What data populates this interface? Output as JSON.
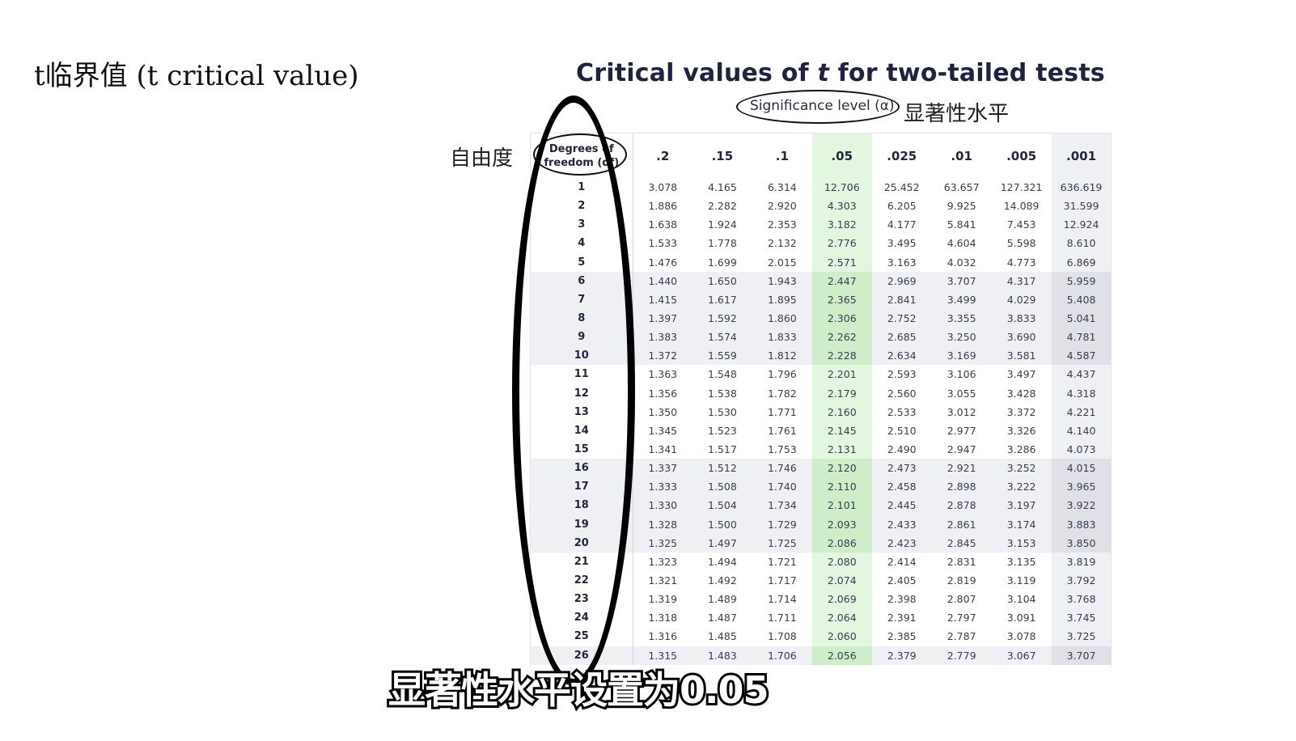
{
  "slide": {
    "title": "t临界值 (t critical value)"
  },
  "table": {
    "heading_before": "Critical values of ",
    "heading_t": "t",
    "heading_after": " for two-tailed tests",
    "significance_label": "Significance level (α)",
    "significance_label_cn": "显著性水平",
    "df_label_cn": "自由度",
    "df_header_line1": "Degrees of",
    "df_header_line2": "freedom (df)",
    "alphas": [
      ".2",
      ".15",
      ".1",
      ".05",
      ".025",
      ".01",
      ".005",
      ".001"
    ],
    "highlight_alpha": ".05",
    "highlight_color": "#cdeec8",
    "rows": [
      {
        "df": "1",
        "values": [
          "3.078",
          "4.165",
          "6.314",
          "12.706",
          "25.452",
          "63.657",
          "127.321",
          "636.619"
        ]
      },
      {
        "df": "2",
        "values": [
          "1.886",
          "2.282",
          "2.920",
          "4.303",
          "6.205",
          "9.925",
          "14.089",
          "31.599"
        ]
      },
      {
        "df": "3",
        "values": [
          "1.638",
          "1.924",
          "2.353",
          "3.182",
          "4.177",
          "5.841",
          "7.453",
          "12.924"
        ]
      },
      {
        "df": "4",
        "values": [
          "1.533",
          "1.778",
          "2.132",
          "2.776",
          "3.495",
          "4.604",
          "5.598",
          "8.610"
        ]
      },
      {
        "df": "5",
        "values": [
          "1.476",
          "1.699",
          "2.015",
          "2.571",
          "3.163",
          "4.032",
          "4.773",
          "6.869"
        ]
      },
      {
        "df": "6",
        "values": [
          "1.440",
          "1.650",
          "1.943",
          "2.447",
          "2.969",
          "3.707",
          "4.317",
          "5.959"
        ]
      },
      {
        "df": "7",
        "values": [
          "1.415",
          "1.617",
          "1.895",
          "2.365",
          "2.841",
          "3.499",
          "4.029",
          "5.408"
        ]
      },
      {
        "df": "8",
        "values": [
          "1.397",
          "1.592",
          "1.860",
          "2.306",
          "2.752",
          "3.355",
          "3.833",
          "5.041"
        ]
      },
      {
        "df": "9",
        "values": [
          "1.383",
          "1.574",
          "1.833",
          "2.262",
          "2.685",
          "3.250",
          "3.690",
          "4.781"
        ]
      },
      {
        "df": "10",
        "values": [
          "1.372",
          "1.559",
          "1.812",
          "2.228",
          "2.634",
          "3.169",
          "3.581",
          "4.587"
        ]
      },
      {
        "df": "11",
        "values": [
          "1.363",
          "1.548",
          "1.796",
          "2.201",
          "2.593",
          "3.106",
          "3.497",
          "4.437"
        ]
      },
      {
        "df": "12",
        "values": [
          "1.356",
          "1.538",
          "1.782",
          "2.179",
          "2.560",
          "3.055",
          "3.428",
          "4.318"
        ]
      },
      {
        "df": "13",
        "values": [
          "1.350",
          "1.530",
          "1.771",
          "2.160",
          "2.533",
          "3.012",
          "3.372",
          "4.221"
        ]
      },
      {
        "df": "14",
        "values": [
          "1.345",
          "1.523",
          "1.761",
          "2.145",
          "2.510",
          "2.977",
          "3.326",
          "4.140"
        ]
      },
      {
        "df": "15",
        "values": [
          "1.341",
          "1.517",
          "1.753",
          "2.131",
          "2.490",
          "2.947",
          "3.286",
          "4.073"
        ]
      },
      {
        "df": "16",
        "values": [
          "1.337",
          "1.512",
          "1.746",
          "2.120",
          "2.473",
          "2.921",
          "3.252",
          "4.015"
        ]
      },
      {
        "df": "17",
        "values": [
          "1.333",
          "1.508",
          "1.740",
          "2.110",
          "2.458",
          "2.898",
          "3.222",
          "3.965"
        ]
      },
      {
        "df": "18",
        "values": [
          "1.330",
          "1.504",
          "1.734",
          "2.101",
          "2.445",
          "2.878",
          "3.197",
          "3.922"
        ]
      },
      {
        "df": "19",
        "values": [
          "1.328",
          "1.500",
          "1.729",
          "2.093",
          "2.433",
          "2.861",
          "3.174",
          "3.883"
        ]
      },
      {
        "df": "20",
        "values": [
          "1.325",
          "1.497",
          "1.725",
          "2.086",
          "2.423",
          "2.845",
          "3.153",
          "3.850"
        ]
      },
      {
        "df": "21",
        "values": [
          "1.323",
          "1.494",
          "1.721",
          "2.080",
          "2.414",
          "2.831",
          "3.135",
          "3.819"
        ]
      },
      {
        "df": "22",
        "values": [
          "1.321",
          "1.492",
          "1.717",
          "2.074",
          "2.405",
          "2.819",
          "3.119",
          "3.792"
        ]
      },
      {
        "df": "23",
        "values": [
          "1.319",
          "1.489",
          "1.714",
          "2.069",
          "2.398",
          "2.807",
          "3.104",
          "3.768"
        ]
      },
      {
        "df": "24",
        "values": [
          "1.318",
          "1.487",
          "1.711",
          "2.064",
          "2.391",
          "2.797",
          "3.091",
          "3.745"
        ]
      },
      {
        "df": "25",
        "values": [
          "1.316",
          "1.485",
          "1.708",
          "2.060",
          "2.385",
          "2.787",
          "3.078",
          "3.725"
        ]
      },
      {
        "df": "26",
        "values": [
          "1.315",
          "1.483",
          "1.706",
          "2.056",
          "2.379",
          "2.779",
          "3.067",
          "3.707"
        ]
      }
    ]
  },
  "subtitle": {
    "text": "显著性水平设置为0.05"
  }
}
